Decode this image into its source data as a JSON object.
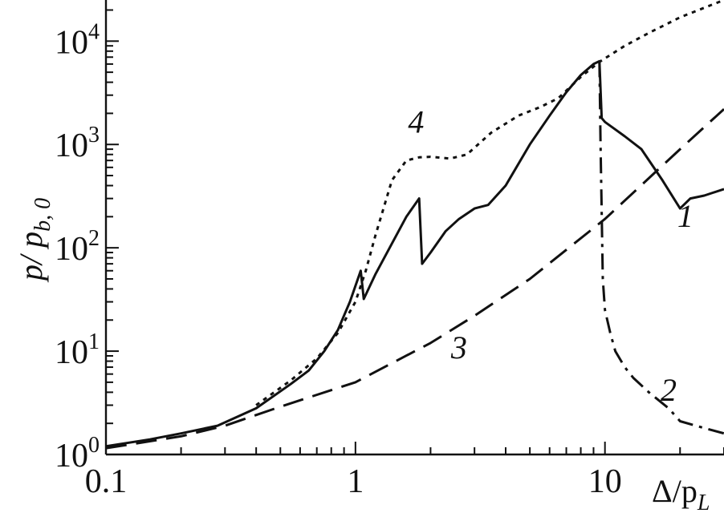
{
  "chart_data": {
    "type": "line",
    "title": "",
    "xlabel": "Δ/p_L",
    "ylabel": "p/ p_{b,0}",
    "xscale": "log",
    "yscale": "log",
    "xlim": [
      0.1,
      30
    ],
    "ylim": [
      1,
      25000
    ],
    "grid": false,
    "x_ticks": [
      {
        "value": 0.1,
        "label": "0.1"
      },
      {
        "value": 1,
        "label": "1"
      },
      {
        "value": 10,
        "label": "10"
      }
    ],
    "y_ticks": [
      {
        "value": 1,
        "base": "10",
        "exp": "0"
      },
      {
        "value": 10,
        "base": "10",
        "exp": "1"
      },
      {
        "value": 100,
        "base": "10",
        "exp": "2"
      },
      {
        "value": 1000,
        "base": "10",
        "exp": "3"
      },
      {
        "value": 10000,
        "base": "10",
        "exp": "4"
      }
    ],
    "xlabel_parts": {
      "main": "Δ/p",
      "sub": "L"
    },
    "ylabel_parts": {
      "main": "p/ p",
      "sub": "b, 0"
    },
    "series": [
      {
        "label": "1",
        "style": "solid",
        "x": [
          0.1,
          0.15,
          0.2,
          0.28,
          0.4,
          0.55,
          0.65,
          0.75,
          0.85,
          0.95,
          1.05,
          1.08,
          1.2,
          1.4,
          1.6,
          1.8,
          1.85,
          2.0,
          2.3,
          2.6,
          3.0,
          3.4,
          4.0,
          5.0,
          6.0,
          7.0,
          8.0,
          9.0,
          9.5,
          9.7,
          10.0,
          12.0,
          14.0,
          17.0,
          20.0,
          22.0,
          25.0,
          30.0
        ],
        "y": [
          1.2,
          1.4,
          1.6,
          1.9,
          2.8,
          4.8,
          6.5,
          10,
          16,
          30,
          60,
          32,
          55,
          110,
          200,
          300,
          70,
          90,
          145,
          190,
          240,
          260,
          400,
          1000,
          1900,
          3200,
          4700,
          6000,
          6400,
          1800,
          1650,
          1200,
          900,
          450,
          240,
          300,
          320,
          370
        ]
      },
      {
        "label": "2",
        "style": "dash-dot",
        "x": [
          9.5,
          9.6,
          9.8,
          10,
          10.5,
          11,
          12,
          13,
          15,
          18,
          20,
          25,
          30
        ],
        "y": [
          6400,
          1000,
          50,
          25,
          15,
          10,
          7,
          5.5,
          4,
          2.8,
          2.1,
          1.8,
          1.6
        ]
      },
      {
        "label": "3",
        "style": "dashed",
        "x": [
          0.1,
          0.2,
          0.3,
          0.5,
          1,
          2,
          3,
          5,
          10,
          20,
          30
        ],
        "y": [
          1.15,
          1.5,
          1.9,
          2.9,
          5,
          12,
          22,
          50,
          190,
          900,
          2200
        ]
      },
      {
        "label": "4",
        "style": "dotted",
        "x": [
          0.4,
          0.55,
          0.7,
          0.85,
          1.0,
          1.1,
          1.2,
          1.4,
          1.6,
          1.8,
          2.0,
          2.4,
          2.8,
          3.5,
          4.5,
          5.5,
          6.5,
          8.0,
          9.5,
          12,
          15,
          20,
          30
        ],
        "y": [
          3.0,
          5.2,
          8.5,
          15,
          30,
          60,
          130,
          450,
          700,
          750,
          760,
          730,
          800,
          1300,
          1900,
          2300,
          2800,
          4500,
          6300,
          9000,
          12000,
          17000,
          25000
        ]
      }
    ],
    "annotations": [
      {
        "text": "4",
        "x": 1.75,
        "y": 1300
      },
      {
        "text": "1",
        "x": 21,
        "y": 160
      },
      {
        "text": "3",
        "x": 2.6,
        "y": 8.5
      },
      {
        "text": "2",
        "x": 18,
        "y": 3.3
      }
    ]
  }
}
